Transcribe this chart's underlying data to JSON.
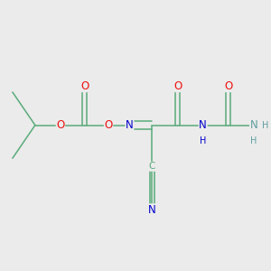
{
  "bg_color": "#ebebeb",
  "bond_color": "#5aab7a",
  "atom_color_N_imine": "#0000cd",
  "atom_color_N_NH": "#0000cd",
  "atom_color_N_CN": "#0000cd",
  "atom_color_N_NH2": "#5f9ea0",
  "atom_color_O": "#ee1111",
  "font_size": 8.5,
  "lw": 1.1,
  "fig_size": 3.0,
  "dpi": 100,
  "xlim": [
    0,
    9.5
  ],
  "ylim": [
    2.0,
    8.5
  ]
}
